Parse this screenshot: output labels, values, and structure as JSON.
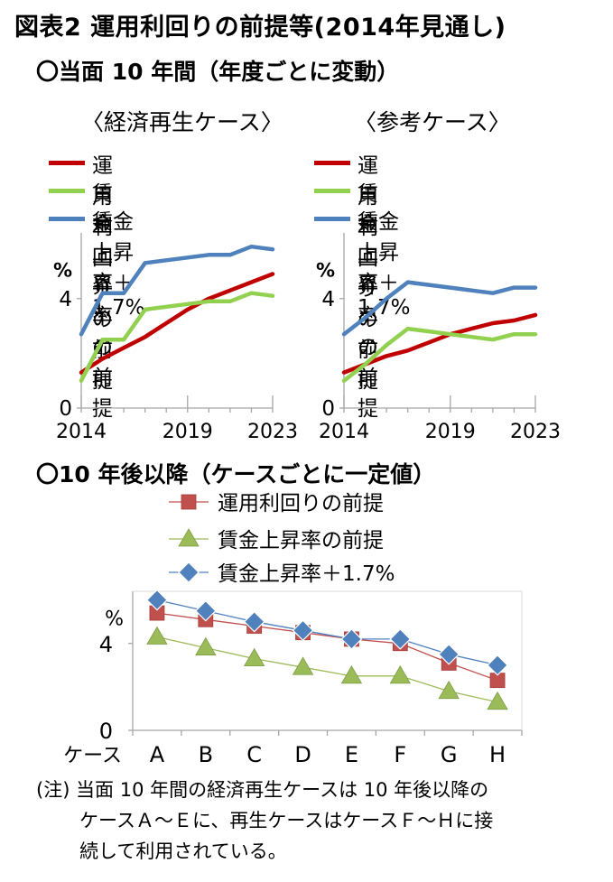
{
  "title": "図表2  運用利回りの前提等(2014年見通し)",
  "section1_heading": "〇当面 10 年間（年度ごとに変動）",
  "section2_heading": "〇10 年後以降（ケースごとに一定値）",
  "note": {
    "line1": "(注) 当面 10 年間の経済再生ケースは 10 年後以降の",
    "line2": "ケースＡ～Ｅに、再生ケースはケースＦ～Ｈに接",
    "line3": "続して利用されている。"
  },
  "colors": {
    "yield": "#c00000",
    "wage": "#92d050",
    "wage_plus": "#4f81bd",
    "yield_marker": "#c0504d",
    "wage_marker": "#9bbb59",
    "wage_plus_marker": "#4f81bd",
    "axis": "#a6a6a6",
    "connector": "#c00000"
  },
  "chart_data": [
    {
      "type": "line",
      "title": "〈経済再生ケース〉",
      "ylabel": "%",
      "x": [
        2014,
        2015,
        2016,
        2017,
        2018,
        2019,
        2020,
        2021,
        2022,
        2023
      ],
      "xticks": [
        "2014",
        "2019",
        "2023"
      ],
      "yticks": [
        "0",
        "4"
      ],
      "ylim": [
        0,
        6.4
      ],
      "grid": false,
      "legend": "top",
      "series": [
        {
          "name": "運用利回りの前提",
          "values": [
            1.3,
            1.8,
            2.2,
            2.6,
            3.1,
            3.6,
            4.0,
            4.3,
            4.6,
            4.9
          ],
          "color_key": "yield"
        },
        {
          "name": "賃金上昇率の前提",
          "values": [
            1.0,
            2.5,
            2.5,
            3.6,
            3.7,
            3.8,
            3.9,
            3.9,
            4.2,
            4.1
          ],
          "color_key": "wage"
        },
        {
          "name": "賃金上昇率＋1.7%",
          "values": [
            2.7,
            4.2,
            4.2,
            5.3,
            5.4,
            5.5,
            5.6,
            5.6,
            5.9,
            5.8
          ],
          "color_key": "wage_plus"
        }
      ]
    },
    {
      "type": "line",
      "title": "〈参考ケース〉",
      "ylabel": "%",
      "x": [
        2014,
        2015,
        2016,
        2017,
        2018,
        2019,
        2020,
        2021,
        2022,
        2023
      ],
      "xticks": [
        "2014",
        "2019",
        "2023"
      ],
      "yticks": [
        "0",
        "4"
      ],
      "ylim": [
        0,
        6.4
      ],
      "grid": false,
      "legend": "top",
      "series": [
        {
          "name": "運用利回りの前提",
          "values": [
            1.3,
            1.6,
            1.9,
            2.1,
            2.4,
            2.7,
            2.9,
            3.1,
            3.2,
            3.4
          ],
          "color_key": "yield"
        },
        {
          "name": "賃金上昇率の前提",
          "values": [
            1.0,
            1.6,
            2.3,
            2.9,
            2.8,
            2.7,
            2.6,
            2.5,
            2.7,
            2.7
          ],
          "color_key": "wage"
        },
        {
          "name": "賃金上昇率＋1.7%",
          "values": [
            2.7,
            3.3,
            4.0,
            4.6,
            4.5,
            4.4,
            4.3,
            4.2,
            4.4,
            4.4
          ],
          "color_key": "wage_plus"
        }
      ]
    },
    {
      "type": "line",
      "ylabel": "%",
      "categories": [
        "A",
        "B",
        "C",
        "D",
        "E",
        "F",
        "G",
        "H"
      ],
      "category_axis_label": "ケース",
      "yticks": [
        "0",
        "4"
      ],
      "ylim": [
        0,
        6.4
      ],
      "grid": false,
      "legend": "top",
      "series": [
        {
          "name": "運用利回りの前提",
          "values": [
            5.4,
            5.1,
            4.8,
            4.5,
            4.2,
            4.0,
            3.1,
            2.3
          ],
          "marker": "square",
          "color_key": "yield_marker"
        },
        {
          "name": "賃金上昇率の前提",
          "values": [
            4.3,
            3.8,
            3.3,
            2.9,
            2.5,
            2.5,
            1.8,
            1.3
          ],
          "marker": "triangle",
          "color_key": "wage_marker"
        },
        {
          "name": "賃金上昇率＋1.7%",
          "values": [
            6.0,
            5.5,
            5.0,
            4.6,
            4.2,
            4.2,
            3.5,
            3.0
          ],
          "marker": "diamond",
          "color_key": "wage_plus_marker"
        }
      ]
    }
  ]
}
